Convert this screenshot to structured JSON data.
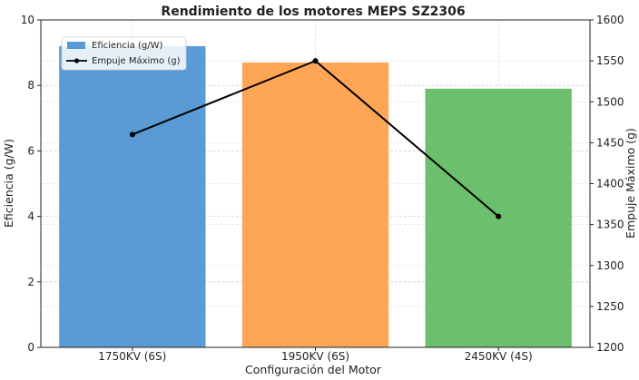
{
  "chart_data": {
    "type": "bar",
    "title": "Rendimiento de los motores MEPS SZ2306",
    "xlabel": "Configuración del Motor",
    "ylabel": "Eficiencia (g/W)",
    "y2label": "Empuje Máximo (g)",
    "categories": [
      "1750KV (6S)",
      "1950KV (6S)",
      "2450KV (4S)"
    ],
    "ylim": [
      0,
      10
    ],
    "y2lim": [
      1200,
      1600
    ],
    "yticks": [
      0,
      2,
      4,
      6,
      8,
      10
    ],
    "y2ticks": [
      1200,
      1250,
      1300,
      1350,
      1400,
      1450,
      1500,
      1550,
      1600
    ],
    "grid": true,
    "legend_position": "top-left",
    "series": [
      {
        "name": "Eficiencia (g/W)",
        "type": "bar",
        "axis": "left",
        "values": [
          9.2,
          8.7,
          7.9
        ],
        "colors": [
          "#5b9bd5",
          "#ffa556",
          "#6cbf6c"
        ]
      },
      {
        "name": "Empuje Máximo (g)",
        "type": "line",
        "axis": "right",
        "values": [
          1460,
          1550,
          1360
        ],
        "color": "#000000"
      }
    ]
  }
}
